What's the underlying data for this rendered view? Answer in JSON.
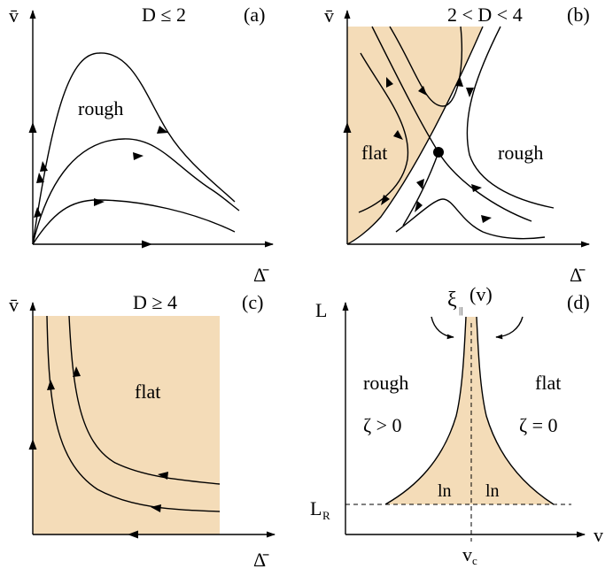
{
  "colors": {
    "flat_region": "#f4dcb8",
    "ink": "#000000"
  },
  "panels": {
    "a": {
      "tag": "(a)",
      "condition": "D ≤ 2",
      "y_axis_label": "v̄",
      "x_axis_label": "Δ̄",
      "region_labels": {
        "rough": "rough"
      }
    },
    "b": {
      "tag": "(b)",
      "condition": "2 < D < 4",
      "y_axis_label": "v̄",
      "x_axis_label": "Δ̄",
      "region_labels": {
        "flat": "flat",
        "rough": "rough"
      }
    },
    "c": {
      "tag": "(c)",
      "condition": "D ≥ 4",
      "y_axis_label": "v̄",
      "x_axis_label": "Δ̄",
      "region_labels": {
        "flat": "flat"
      }
    },
    "d": {
      "tag": "(d)",
      "y_axis_label": "L",
      "x_axis_label": "v",
      "xi_label": "ξ",
      "xi_subscript": "||",
      "xi_arg": "(v)",
      "lr_main": "L",
      "lr_sub": "R",
      "vc_main": "v",
      "vc_sub": "c",
      "rough_label": "rough",
      "rough_condition": "ζ > 0",
      "flat_label": "flat",
      "flat_condition": "ζ = 0",
      "ln_left": "ln",
      "ln_right": "ln"
    }
  }
}
